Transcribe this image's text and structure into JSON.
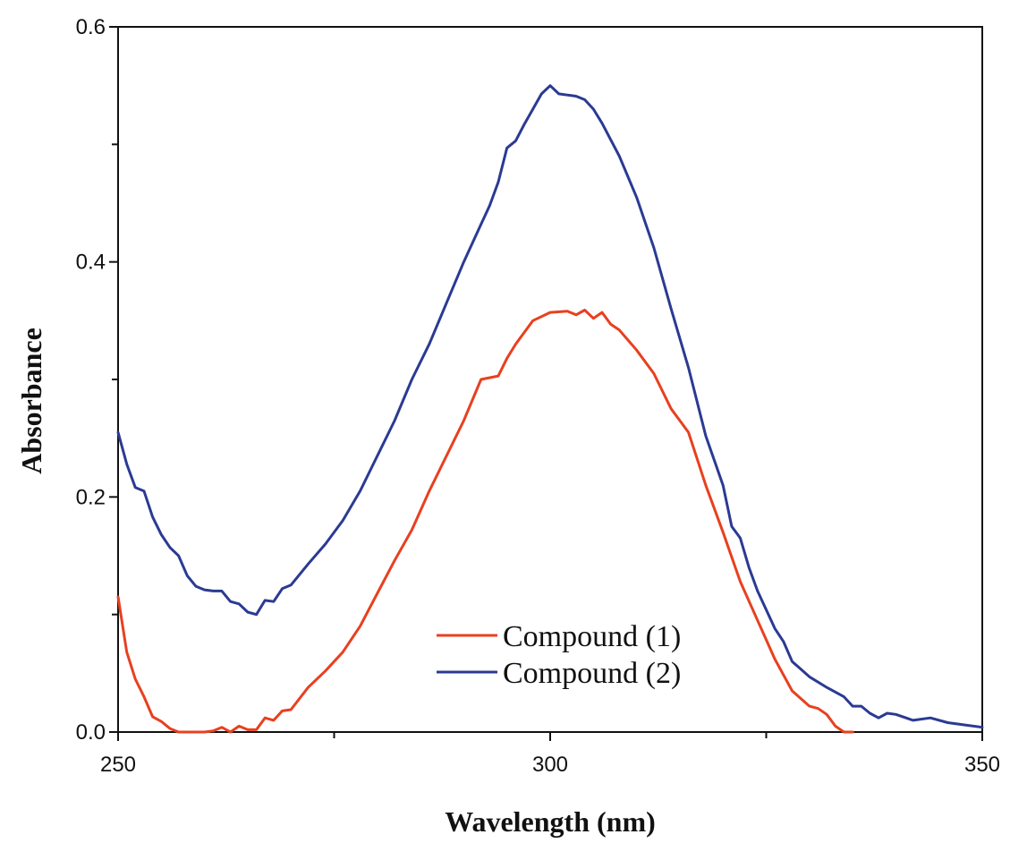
{
  "chart_data": {
    "type": "line",
    "title": "",
    "xlabel": "Wavelength (nm)",
    "ylabel": "Absorbance",
    "xlim": [
      250,
      350
    ],
    "ylim": [
      0,
      0.6
    ],
    "x_ticks": [
      250,
      300,
      350
    ],
    "x_tick_labels": [
      "250",
      "300",
      "350"
    ],
    "x_minor_ticks": [
      275,
      325
    ],
    "y_ticks": [
      0,
      0.2,
      0.4,
      0.6
    ],
    "y_tick_labels": [
      "0.0",
      "0.2",
      "0.4",
      "0.6"
    ],
    "y_minor_ticks": [
      0.1,
      0.3,
      0.5
    ],
    "grid": false,
    "legend_position": "bottom-center",
    "series": [
      {
        "name": "Compound (1)",
        "color": "#e8401f",
        "x": [
          250,
          251,
          252,
          253,
          254,
          255,
          256,
          257,
          258,
          259,
          260,
          261,
          262,
          263,
          264,
          265,
          266,
          267,
          268,
          269,
          270,
          272,
          274,
          276,
          278,
          280,
          282,
          284,
          286,
          288,
          290,
          292,
          294,
          295,
          296,
          298,
          300,
          302,
          303,
          304,
          305,
          306,
          307,
          308,
          310,
          312,
          314,
          316,
          318,
          320,
          322,
          324,
          326,
          328,
          330,
          331,
          332,
          333,
          334,
          335
        ],
        "values": [
          0.115,
          0.068,
          0.045,
          0.03,
          0.013,
          0.009,
          0.003,
          0.0,
          0.0,
          0.0,
          0.0,
          0.001,
          0.004,
          0.0,
          0.005,
          0.002,
          0.002,
          0.012,
          0.01,
          0.018,
          0.019,
          0.038,
          0.052,
          0.068,
          0.09,
          0.118,
          0.146,
          0.172,
          0.205,
          0.235,
          0.265,
          0.3,
          0.303,
          0.318,
          0.33,
          0.35,
          0.357,
          0.358,
          0.355,
          0.359,
          0.352,
          0.357,
          0.347,
          0.342,
          0.325,
          0.305,
          0.275,
          0.255,
          0.21,
          0.17,
          0.128,
          0.095,
          0.062,
          0.035,
          0.022,
          0.02,
          0.015,
          0.005,
          0.0,
          0.0
        ]
      },
      {
        "name": "Compound (2)",
        "color": "#2b3a93",
        "x": [
          250,
          251,
          252,
          253,
          254,
          255,
          256,
          257,
          258,
          259,
          260,
          261,
          262,
          263,
          264,
          265,
          266,
          267,
          268,
          269,
          270,
          272,
          274,
          276,
          278,
          280,
          282,
          284,
          286,
          288,
          290,
          292,
          293,
          294,
          295,
          296,
          297,
          298,
          299,
          300,
          301,
          302,
          303,
          304,
          305,
          306,
          308,
          310,
          312,
          314,
          316,
          318,
          320,
          321,
          322,
          323,
          324,
          326,
          327,
          328,
          330,
          332,
          334,
          335,
          336,
          337,
          338,
          339,
          340,
          342,
          344,
          346,
          348,
          350
        ],
        "values": [
          0.255,
          0.228,
          0.208,
          0.205,
          0.183,
          0.168,
          0.157,
          0.15,
          0.133,
          0.124,
          0.121,
          0.12,
          0.12,
          0.111,
          0.109,
          0.102,
          0.1,
          0.112,
          0.111,
          0.122,
          0.125,
          0.143,
          0.16,
          0.18,
          0.205,
          0.235,
          0.265,
          0.3,
          0.33,
          0.365,
          0.4,
          0.432,
          0.448,
          0.468,
          0.497,
          0.503,
          0.517,
          0.53,
          0.543,
          0.55,
          0.543,
          0.542,
          0.541,
          0.538,
          0.53,
          0.518,
          0.49,
          0.455,
          0.412,
          0.36,
          0.31,
          0.252,
          0.21,
          0.175,
          0.165,
          0.14,
          0.12,
          0.088,
          0.077,
          0.06,
          0.047,
          0.038,
          0.03,
          0.022,
          0.022,
          0.016,
          0.012,
          0.016,
          0.015,
          0.01,
          0.012,
          0.008,
          0.006,
          0.004
        ]
      }
    ]
  },
  "legend": {
    "items": [
      {
        "label": "Compound (1)",
        "color": "#e8401f"
      },
      {
        "label": "Compound (2)",
        "color": "#2b3a93"
      }
    ]
  }
}
